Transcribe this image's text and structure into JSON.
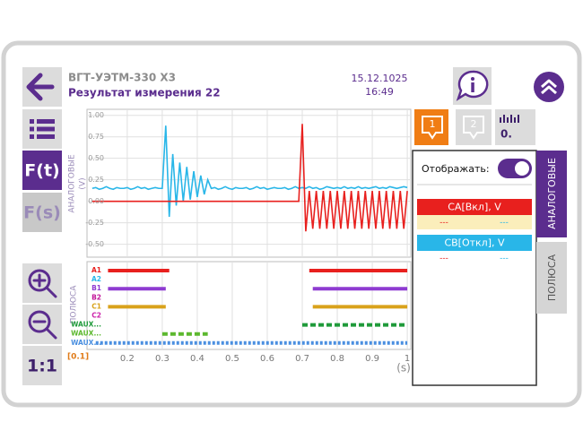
{
  "header": {
    "device": "ВГТ-УЭТМ-330 Х3",
    "title": "Результат измерения 22",
    "date": "15.12.1025",
    "time": "16:49"
  },
  "sidebar": {
    "ft": "F(t)",
    "fs": "F(s)",
    "scale": "1:1"
  },
  "chart": {
    "type": "line",
    "y_label": "АНАЛОГОВЫЕ",
    "y_unit": "(V)",
    "digital_label": "ПОЛЮСА",
    "x_unit": "(s)",
    "x_offset": "[0.1]",
    "xlim": [
      0.085,
      1.01
    ],
    "ylim": [
      -0.65,
      1.07
    ],
    "xticks": [
      0.2,
      0.3,
      0.4,
      0.5,
      0.6,
      0.7,
      0.8,
      0.9,
      1
    ],
    "yticks": [
      {
        "value": 1,
        "label": "1.00"
      },
      {
        "value": 0.75,
        "label": "0.75"
      },
      {
        "value": 0.5,
        "label": "0.50"
      },
      {
        "value": 0.25,
        "label": "0.25"
      },
      {
        "value": 0,
        "label": "0.00"
      },
      {
        "value": -0.25,
        "label": "-0.25"
      },
      {
        "value": -0.5,
        "label": "-0.50"
      }
    ],
    "grid": true,
    "x": [
      0.1,
      0.11,
      0.12,
      0.13,
      0.14,
      0.15,
      0.16,
      0.17,
      0.18,
      0.19,
      0.2,
      0.21,
      0.22,
      0.23,
      0.24,
      0.25,
      0.26,
      0.27,
      0.28,
      0.29,
      0.3,
      0.31,
      0.32,
      0.33,
      0.34,
      0.35,
      0.36,
      0.37,
      0.38,
      0.39,
      0.4,
      0.41,
      0.42,
      0.43,
      0.44,
      0.45,
      0.46,
      0.47,
      0.48,
      0.49,
      0.5,
      0.51,
      0.52,
      0.53,
      0.54,
      0.55,
      0.56,
      0.57,
      0.58,
      0.59,
      0.6,
      0.61,
      0.62,
      0.63,
      0.64,
      0.65,
      0.66,
      0.67,
      0.68,
      0.69,
      0.7,
      0.71,
      0.72,
      0.73,
      0.74,
      0.75,
      0.76,
      0.77,
      0.78,
      0.79,
      0.8,
      0.81,
      0.82,
      0.83,
      0.84,
      0.85,
      0.86,
      0.87,
      0.88,
      0.89,
      0.9,
      0.91,
      0.92,
      0.93,
      0.94,
      0.95,
      0.96,
      0.97,
      0.98,
      0.99,
      1
    ],
    "series": [
      {
        "name": "CB[Откл], V",
        "color": "#29b6e8",
        "stats": [
          "---",
          "---"
        ],
        "values": [
          0.15,
          0.16,
          0.14,
          0.15,
          0.17,
          0.15,
          0.14,
          0.16,
          0.15,
          0.15,
          0.16,
          0.14,
          0.15,
          0.17,
          0.15,
          0.16,
          0.14,
          0.15,
          0.16,
          0.15,
          0.15,
          0.88,
          -0.18,
          0.55,
          -0.05,
          0.45,
          0.0,
          0.4,
          0.02,
          0.35,
          0.05,
          0.3,
          0.08,
          0.25,
          0.15,
          0.16,
          0.14,
          0.15,
          0.17,
          0.15,
          0.14,
          0.16,
          0.15,
          0.15,
          0.16,
          0.14,
          0.15,
          0.17,
          0.15,
          0.16,
          0.14,
          0.15,
          0.16,
          0.15,
          0.15,
          0.16,
          0.14,
          0.15,
          0.17,
          0.15,
          0.16,
          0.15,
          0.17,
          0.15,
          0.16,
          0.14,
          0.15,
          0.17,
          0.16,
          0.15,
          0.16,
          0.15,
          0.17,
          0.15,
          0.16,
          0.15,
          0.17,
          0.15,
          0.16,
          0.15,
          0.16,
          0.17,
          0.15,
          0.16,
          0.15,
          0.17,
          0.16,
          0.15,
          0.16,
          0.17,
          0.16
        ]
      },
      {
        "name": "CA[Вкл], V",
        "color": "#e8201e",
        "stats": [
          "---",
          "---"
        ],
        "values": [
          0,
          0,
          0,
          0,
          0,
          0,
          0,
          0,
          0,
          0,
          0,
          0,
          0,
          0,
          0,
          0,
          0,
          0,
          0,
          0,
          0,
          0,
          0,
          0,
          0,
          0,
          0,
          0,
          0,
          0,
          0,
          0,
          0,
          0,
          0,
          0,
          0,
          0,
          0,
          0,
          0,
          0,
          0,
          0,
          0,
          0,
          0,
          0,
          0,
          0,
          0,
          0,
          0,
          0,
          0,
          0,
          0,
          0,
          0,
          0,
          0.9,
          -0.35,
          0.12,
          -0.32,
          0.12,
          -0.32,
          0.12,
          -0.32,
          0.12,
          -0.32,
          0.12,
          -0.32,
          0.12,
          -0.32,
          0.12,
          -0.32,
          0.12,
          -0.32,
          0.12,
          -0.32,
          0.12,
          -0.32,
          0.12,
          -0.32,
          0.12,
          -0.32,
          0.12,
          -0.32,
          0.12,
          -0.32,
          0.12
        ]
      }
    ],
    "channels": [
      {
        "name": "A1",
        "color": "#e8201e",
        "style": "solid",
        "segments": [
          [
            0.145,
            0.32
          ],
          [
            0.72,
            1.0
          ]
        ]
      },
      {
        "name": "A2",
        "color": "#29b6e8",
        "style": "solid",
        "segments": []
      },
      {
        "name": "B1",
        "color": "#8e3bd1",
        "style": "solid",
        "segments": [
          [
            0.145,
            0.31
          ],
          [
            0.73,
            1.0
          ]
        ]
      },
      {
        "name": "B2",
        "color": "#c2189a",
        "style": "solid",
        "segments": []
      },
      {
        "name": "C1",
        "color": "#d9a21b",
        "style": "solid",
        "segments": [
          [
            0.145,
            0.31
          ],
          [
            0.73,
            1.0
          ]
        ]
      },
      {
        "name": "C2",
        "color": "#cc22aa",
        "style": "solid",
        "segments": []
      },
      {
        "name": "WAUX...",
        "color": "#1f9a3a",
        "style": "dashed",
        "segments": [
          [
            0.7,
            1.0
          ]
        ]
      },
      {
        "name": "WAUX...",
        "color": "#5cb82e",
        "style": "dashed",
        "segments": [
          [
            0.3,
            0.43
          ]
        ]
      },
      {
        "name": "WAUX...",
        "color": "#4a8fe0",
        "style": "dotted",
        "segments": [
          [
            0.11,
            1.0
          ]
        ]
      }
    ]
  },
  "panel": {
    "tab1": "1",
    "tab2": "2",
    "counter": "0.",
    "show_label": "Отображать:"
  },
  "side_tabs": [
    "АНАЛОГОВЫЕ",
    "ПОЛЮСА"
  ]
}
